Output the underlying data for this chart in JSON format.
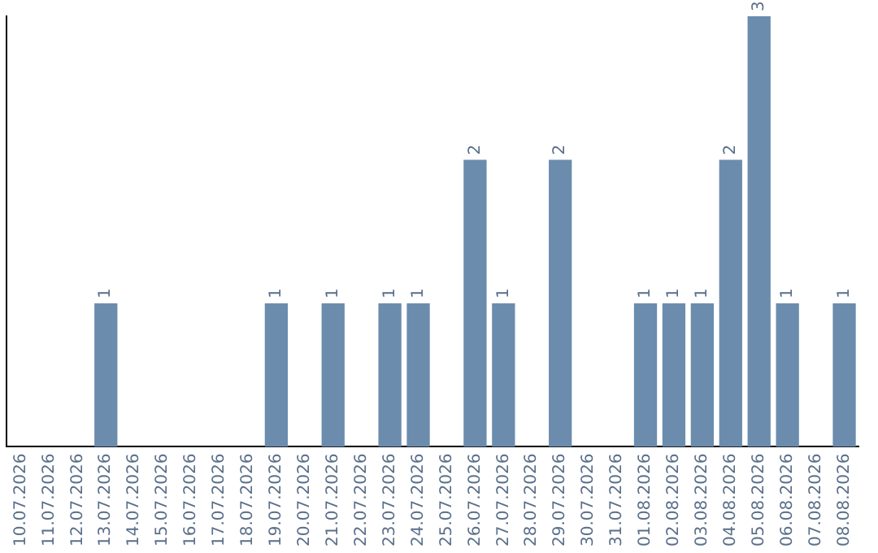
{
  "chart_data": {
    "type": "bar",
    "categories": [
      "10.07.2026",
      "11.07.2026",
      "12.07.2026",
      "13.07.2026",
      "14.07.2026",
      "15.07.2026",
      "16.07.2026",
      "17.07.2026",
      "18.07.2026",
      "19.07.2026",
      "20.07.2026",
      "21.07.2026",
      "22.07.2026",
      "23.07.2026",
      "24.07.2026",
      "25.07.2026",
      "26.07.2026",
      "27.07.2026",
      "28.07.2026",
      "29.07.2026",
      "30.07.2026",
      "31.07.2026",
      "01.08.2026",
      "02.08.2026",
      "03.08.2026",
      "04.08.2026",
      "05.08.2026",
      "06.08.2026",
      "07.08.2026",
      "08.08.2026"
    ],
    "values": [
      0,
      0,
      0,
      1,
      0,
      0,
      0,
      0,
      0,
      1,
      0,
      1,
      0,
      1,
      1,
      0,
      2,
      1,
      0,
      2,
      0,
      0,
      1,
      1,
      1,
      2,
      3,
      1,
      0,
      1
    ],
    "value_labels": [
      null,
      null,
      null,
      "1",
      null,
      null,
      null,
      null,
      null,
      "1",
      null,
      "1",
      null,
      "1",
      "1",
      null,
      "2",
      "1",
      null,
      "2",
      null,
      null,
      "1",
      "1",
      "1",
      "2",
      "3",
      "1",
      null,
      "1"
    ],
    "color": "#6b8cad",
    "tick_labels": "x",
    "grid": false,
    "legend": false
  }
}
